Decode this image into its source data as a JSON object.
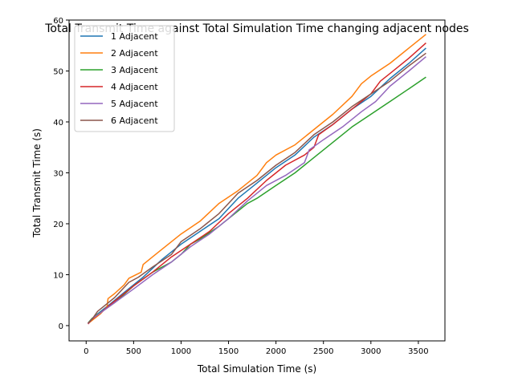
{
  "chart_data": {
    "type": "line",
    "title": "Total Transmit Time against Total Simulation Time changing adjacent nodes",
    "xlabel": "Total Simulation Time (s)",
    "ylabel": "Total Transmit Time (s)",
    "xlim": [
      -180,
      3780
    ],
    "ylim": [
      -3,
      60
    ],
    "xticks": [
      0,
      500,
      1000,
      1500,
      2000,
      2500,
      3000,
      3500
    ],
    "yticks": [
      0,
      10,
      20,
      30,
      40,
      50,
      60
    ],
    "grid": false,
    "legend_position": "top-left",
    "series": [
      {
        "name": "1 Adjacent",
        "color": "#1f77b4",
        "points": [
          [
            20,
            0.5
          ],
          [
            60,
            1.3
          ],
          [
            120,
            2.3
          ],
          [
            250,
            4.2
          ],
          [
            400,
            6.5
          ],
          [
            600,
            9.5
          ],
          [
            800,
            13.0
          ],
          [
            1000,
            16.0
          ],
          [
            1200,
            18.5
          ],
          [
            1400,
            21.0
          ],
          [
            1600,
            25.0
          ],
          [
            1800,
            28.0
          ],
          [
            2000,
            31.0
          ],
          [
            2200,
            33.5
          ],
          [
            2400,
            37.0
          ],
          [
            2600,
            39.5
          ],
          [
            2800,
            42.5
          ],
          [
            3000,
            45.0
          ],
          [
            3200,
            48.5
          ],
          [
            3400,
            51.5
          ],
          [
            3580,
            54.5
          ]
        ]
      },
      {
        "name": "2 Adjacent",
        "color": "#ff7f0e",
        "points": [
          [
            20,
            0.4
          ],
          [
            60,
            1.0
          ],
          [
            150,
            2.3
          ],
          [
            220,
            3.7
          ],
          [
            230,
            5.3
          ],
          [
            300,
            6.3
          ],
          [
            400,
            8.0
          ],
          [
            450,
            9.3
          ],
          [
            580,
            10.5
          ],
          [
            600,
            12.0
          ],
          [
            700,
            13.5
          ],
          [
            800,
            15.0
          ],
          [
            1000,
            18.0
          ],
          [
            1200,
            20.5
          ],
          [
            1400,
            24.0
          ],
          [
            1600,
            26.5
          ],
          [
            1800,
            29.5
          ],
          [
            1900,
            32.0
          ],
          [
            2000,
            33.5
          ],
          [
            2200,
            35.5
          ],
          [
            2400,
            38.5
          ],
          [
            2600,
            41.5
          ],
          [
            2800,
            45.0
          ],
          [
            2900,
            47.5
          ],
          [
            3000,
            49.0
          ],
          [
            3200,
            51.5
          ],
          [
            3400,
            54.5
          ],
          [
            3580,
            57.2
          ]
        ]
      },
      {
        "name": "3 Adjacent",
        "color": "#2ca02c",
        "points": [
          [
            20,
            0.5
          ],
          [
            60,
            1.4
          ],
          [
            120,
            2.2
          ],
          [
            300,
            4.5
          ],
          [
            500,
            7.8
          ],
          [
            700,
            10.5
          ],
          [
            900,
            12.5
          ],
          [
            1000,
            14.0
          ],
          [
            1100,
            16.0
          ],
          [
            1200,
            17.0
          ],
          [
            1400,
            19.5
          ],
          [
            1600,
            22.5
          ],
          [
            1700,
            24.0
          ],
          [
            1800,
            25.0
          ],
          [
            2000,
            27.5
          ],
          [
            2200,
            30.0
          ],
          [
            2400,
            33.0
          ],
          [
            2600,
            36.0
          ],
          [
            2800,
            39.0
          ],
          [
            3000,
            41.5
          ],
          [
            3200,
            44.0
          ],
          [
            3400,
            46.5
          ],
          [
            3580,
            48.8
          ]
        ]
      },
      {
        "name": "4 Adjacent",
        "color": "#d62728",
        "points": [
          [
            20,
            0.3
          ],
          [
            60,
            1.2
          ],
          [
            150,
            2.5
          ],
          [
            300,
            4.8
          ],
          [
            500,
            7.8
          ],
          [
            700,
            10.5
          ],
          [
            900,
            13.5
          ],
          [
            1100,
            16.0
          ],
          [
            1300,
            18.5
          ],
          [
            1500,
            22.0
          ],
          [
            1700,
            25.0
          ],
          [
            1900,
            28.5
          ],
          [
            2100,
            31.5
          ],
          [
            2300,
            33.5
          ],
          [
            2400,
            35.0
          ],
          [
            2450,
            37.5
          ],
          [
            2600,
            39.5
          ],
          [
            2800,
            42.5
          ],
          [
            3000,
            45.5
          ],
          [
            3100,
            48.0
          ],
          [
            3200,
            49.5
          ],
          [
            3400,
            52.5
          ],
          [
            3580,
            55.5
          ]
        ]
      },
      {
        "name": "5 Adjacent",
        "color": "#9467bd",
        "points": [
          [
            20,
            0.4
          ],
          [
            60,
            1.3
          ],
          [
            150,
            2.5
          ],
          [
            300,
            4.5
          ],
          [
            500,
            7.2
          ],
          [
            700,
            10.0
          ],
          [
            900,
            12.5
          ],
          [
            1100,
            15.5
          ],
          [
            1300,
            18.0
          ],
          [
            1500,
            21.0
          ],
          [
            1700,
            24.5
          ],
          [
            1900,
            27.5
          ],
          [
            2100,
            29.5
          ],
          [
            2300,
            32.0
          ],
          [
            2350,
            34.5
          ],
          [
            2500,
            36.5
          ],
          [
            2700,
            39.0
          ],
          [
            2900,
            42.0
          ],
          [
            3050,
            44.0
          ],
          [
            3200,
            47.0
          ],
          [
            3400,
            50.0
          ],
          [
            3580,
            52.8
          ]
        ]
      },
      {
        "name": "6 Adjacent",
        "color": "#8c564b",
        "points": [
          [
            20,
            0.5
          ],
          [
            60,
            1.2
          ],
          [
            120,
            2.8
          ],
          [
            200,
            4.0
          ],
          [
            300,
            5.5
          ],
          [
            450,
            8.5
          ],
          [
            550,
            9.5
          ],
          [
            700,
            11.5
          ],
          [
            900,
            14.0
          ],
          [
            1000,
            16.5
          ],
          [
            1200,
            19.0
          ],
          [
            1400,
            22.0
          ],
          [
            1600,
            26.0
          ],
          [
            1800,
            28.5
          ],
          [
            2000,
            31.5
          ],
          [
            2200,
            34.0
          ],
          [
            2400,
            37.5
          ],
          [
            2600,
            40.0
          ],
          [
            2800,
            43.0
          ],
          [
            3000,
            45.5
          ],
          [
            3200,
            48.0
          ],
          [
            3400,
            51.0
          ],
          [
            3580,
            53.5
          ]
        ]
      }
    ]
  }
}
